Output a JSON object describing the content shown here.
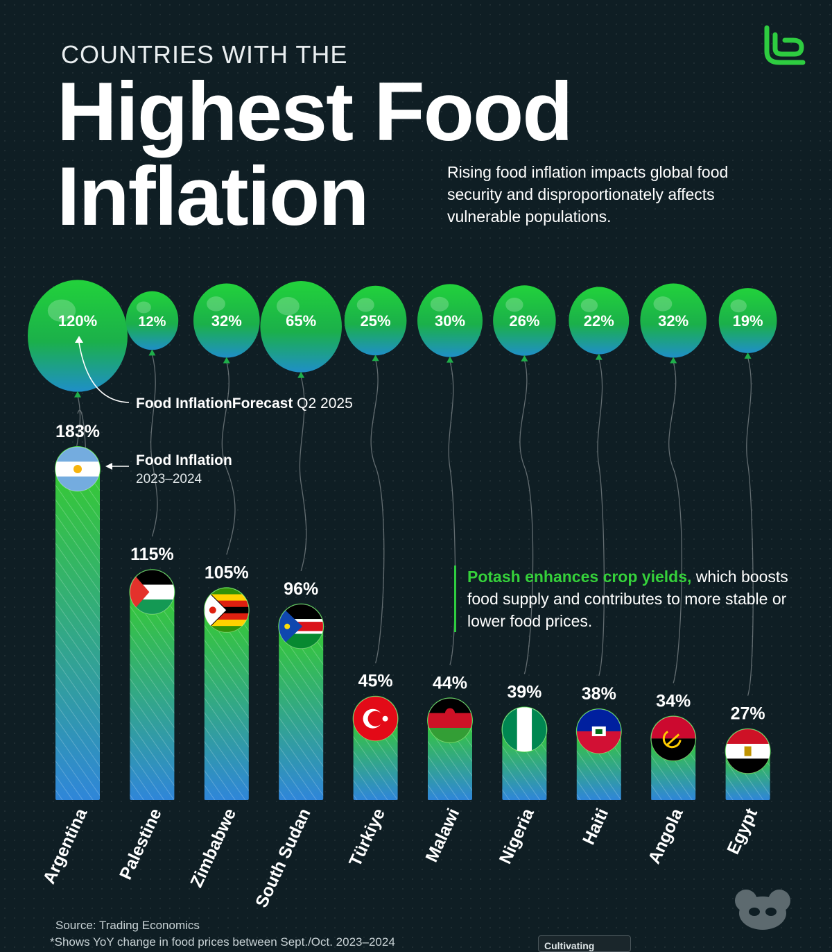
{
  "header": {
    "pre_title": "COUNTRIES WITH THE",
    "title_line1": "Highest Food",
    "title_line2": "Inflation",
    "subtitle": "Rising food inflation impacts global food security and disproportionately affects vulnerable populations."
  },
  "annotations": {
    "forecast_label_bold": "Food InflationForecast",
    "forecast_label_rest": " Q2 2025",
    "current_label_line1": "Food Inflation",
    "current_label_line2": "2023–2024"
  },
  "callout": {
    "highlight": "Potash enhances crop yields,",
    "rest": " which boosts food supply and contributes to more stable or lower food prices."
  },
  "footer": {
    "source": "Source: Trading Economics",
    "note": "*Shows YoY change in food prices between Sept./Oct. 2023–2024",
    "badge": "Cultivating"
  },
  "colors": {
    "background": "#0f1e24",
    "accent_green": "#35d13a",
    "bar_top": "#36c934",
    "bar_bottom": "#2f86d9"
  },
  "icons": [
    "brand-logo-icon",
    "panda-logo-icon",
    "country-flag-icons",
    "up-arrow-icon"
  ],
  "chart_data": {
    "type": "bar",
    "categories": [
      "Argentina",
      "Palestine",
      "Zimbabwe",
      "South Sudan",
      "Türkiye",
      "Malawi",
      "Nigeria",
      "Haiti",
      "Angola",
      "Egypt"
    ],
    "series": [
      {
        "name": "Food Inflation 2023–2024",
        "values": [
          183,
          115,
          105,
          96,
          45,
          44,
          39,
          38,
          34,
          27
        ],
        "labels": [
          "183%",
          "115%",
          "105%",
          "96%",
          "45%",
          "44%",
          "39%",
          "38%",
          "34%",
          "27%"
        ]
      },
      {
        "name": "Food InflationForecast Q2 2025",
        "values": [
          120,
          12,
          32,
          65,
          25,
          30,
          26,
          22,
          32,
          19
        ],
        "labels": [
          "120%",
          "12%",
          "32%",
          "65%",
          "25%",
          "30%",
          "26%",
          "22%",
          "32%",
          "19%"
        ]
      }
    ],
    "ylim": [
      0,
      183
    ]
  }
}
